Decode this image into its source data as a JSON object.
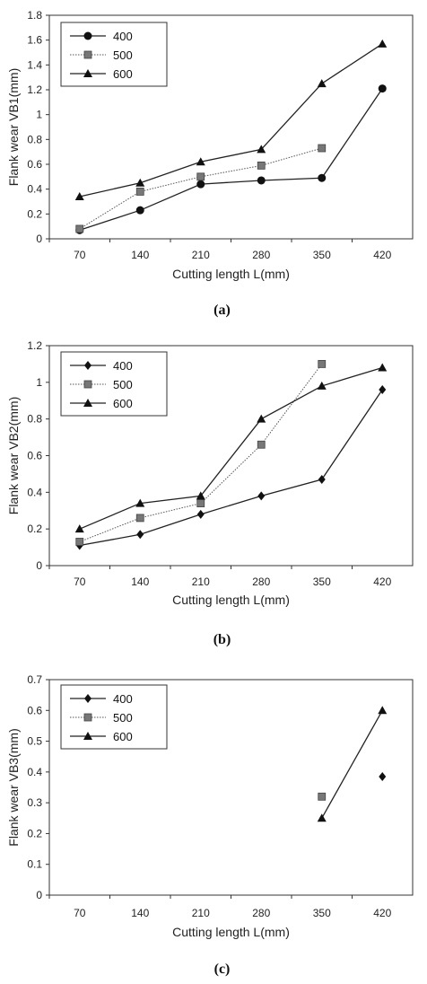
{
  "chart_data": [
    {
      "type": "line",
      "caption": "(a)",
      "ylabel": "Flank wear VB1(mm)",
      "xlabel": "Cutting length L(mm)",
      "categories": [
        "70",
        "140",
        "210",
        "280",
        "350",
        "420"
      ],
      "ylim": [
        0,
        1.8
      ],
      "yticks": [
        "0",
        "0.2",
        "0.4",
        "0.6",
        "0.8",
        "1",
        "1.2",
        "1.4",
        "1.6",
        "1.8"
      ],
      "legend_position": "top-left",
      "series": [
        {
          "name": "400",
          "marker": "circle",
          "line": "solid",
          "values": [
            0.07,
            0.23,
            0.44,
            0.47,
            0.49,
            1.21
          ]
        },
        {
          "name": "500",
          "marker": "square",
          "line": "dotted",
          "values": [
            0.08,
            0.38,
            0.5,
            0.59,
            0.73,
            null
          ]
        },
        {
          "name": "600",
          "marker": "triangle",
          "line": "solid",
          "values": [
            0.34,
            0.45,
            0.62,
            0.72,
            1.25,
            1.57
          ]
        }
      ]
    },
    {
      "type": "line",
      "caption": "(b)",
      "ylabel": "Flank wear VB2(mm)",
      "xlabel": "Cutting length L(mm)",
      "categories": [
        "70",
        "140",
        "210",
        "280",
        "350",
        "420"
      ],
      "ylim": [
        0,
        1.2
      ],
      "yticks": [
        "0",
        "0.2",
        "0.4",
        "0.6",
        "0.8",
        "1",
        "1.2"
      ],
      "legend_position": "top-left",
      "series": [
        {
          "name": "400",
          "marker": "diamond",
          "line": "solid",
          "values": [
            0.11,
            0.17,
            0.28,
            0.38,
            0.47,
            0.96
          ]
        },
        {
          "name": "500",
          "marker": "square",
          "line": "dotted",
          "values": [
            0.13,
            0.26,
            0.34,
            0.66,
            1.1,
            null
          ]
        },
        {
          "name": "600",
          "marker": "triangle",
          "line": "solid",
          "values": [
            0.2,
            0.34,
            0.38,
            0.8,
            0.98,
            1.08
          ]
        }
      ]
    },
    {
      "type": "line",
      "caption": "(c)",
      "ylabel": "Flank wear VB3(mm)",
      "xlabel": "Cutting length L(mm)",
      "categories": [
        "70",
        "140",
        "210",
        "280",
        "350",
        "420"
      ],
      "ylim": [
        0,
        0.7
      ],
      "yticks": [
        "0",
        "0.1",
        "0.2",
        "0.3",
        "0.4",
        "0.5",
        "0.6",
        "0.7"
      ],
      "legend_position": "top-left",
      "series": [
        {
          "name": "400",
          "marker": "diamond",
          "line": "solid",
          "values": [
            null,
            null,
            null,
            null,
            null,
            0.385
          ]
        },
        {
          "name": "500",
          "marker": "square",
          "line": "dotted",
          "values": [
            null,
            null,
            null,
            null,
            0.32,
            null
          ]
        },
        {
          "name": "600",
          "marker": "triangle",
          "line": "solid",
          "values": [
            null,
            null,
            null,
            null,
            0.25,
            0.6
          ]
        }
      ]
    }
  ]
}
